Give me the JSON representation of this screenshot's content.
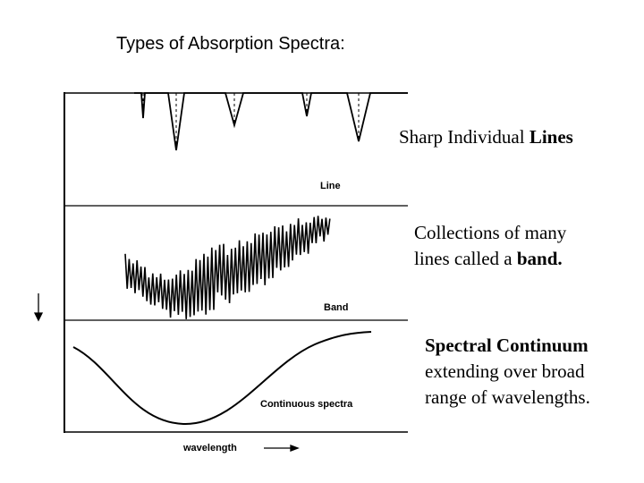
{
  "slide": {
    "title": "Types of Absorption Spectra:"
  },
  "diagram": {
    "panels": [
      {
        "label": "Line",
        "shape": "sharp-dips"
      },
      {
        "label": "Band",
        "shape": "dense-oscillation"
      },
      {
        "label": "Continuous spectra",
        "shape": "broad-trough"
      }
    ],
    "x_axis_label": "wavelength",
    "line_color": "#000000"
  },
  "captions": {
    "line": {
      "text": "Sharp Individual ",
      "bold": "Lines"
    },
    "band": {
      "line1": "Collections of many",
      "line2_text": "lines called a ",
      "line2_bold": "band."
    },
    "continuum": {
      "bold": "Spectral Continuum",
      "line2": "extending over broad",
      "line3": "range of wavelengths."
    }
  }
}
